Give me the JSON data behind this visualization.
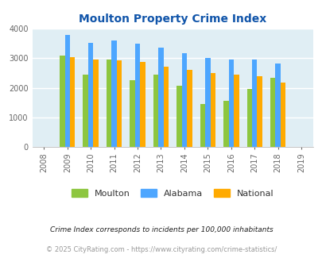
{
  "title": "Moulton Property Crime Index",
  "years": [
    2008,
    2009,
    2010,
    2011,
    2012,
    2013,
    2014,
    2015,
    2016,
    2017,
    2018,
    2019
  ],
  "moulton": [
    null,
    3090,
    2450,
    2950,
    2260,
    2440,
    2060,
    1450,
    1570,
    1960,
    2350,
    null
  ],
  "alabama": [
    null,
    3780,
    3510,
    3600,
    3500,
    3350,
    3160,
    3000,
    2970,
    2970,
    2820,
    null
  ],
  "national": [
    null,
    3040,
    2950,
    2920,
    2880,
    2720,
    2600,
    2500,
    2450,
    2380,
    2170,
    null
  ],
  "moulton_color": "#8dc63f",
  "alabama_color": "#4da6ff",
  "national_color": "#ffaa00",
  "bg_color": "#e0eef4",
  "ylim": [
    0,
    4000
  ],
  "yticks": [
    0,
    1000,
    2000,
    3000,
    4000
  ],
  "footnote1": "Crime Index corresponds to incidents per 100,000 inhabitants",
  "footnote2": "© 2025 CityRating.com - https://www.cityrating.com/crime-statistics/",
  "title_color": "#1155aa",
  "footnote1_color": "#222222",
  "footnote2_color": "#999999"
}
